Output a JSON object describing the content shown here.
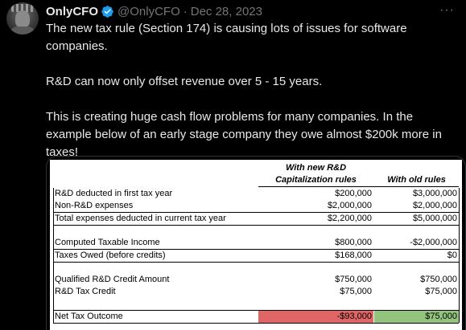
{
  "tweet": {
    "display_name": "OnlyCFO",
    "handle": "@OnlyCFO",
    "separator": "·",
    "date": "Dec 28, 2023",
    "more_label": "···",
    "paragraphs": [
      "The new tax rule (Section 174) is causing lots of issues for software companies.",
      "R&D can now only offset revenue over 5 - 15 years.",
      "This is creating huge cash flow problems for many companies. In the example below of an early stage company they owe almost $200k more in taxes!"
    ]
  },
  "table": {
    "col1_header_line1": "With new R&D",
    "col1_header_line2": "Capitalization rules",
    "col2_header": "With old rules",
    "rows": [
      {
        "label": "R&D deducted in first tax year",
        "new": "$200,000",
        "old": "$3,000,000"
      },
      {
        "label": "Non-R&D expenses",
        "new": "$2,000,000",
        "old": "$2,000,000"
      },
      {
        "label": "Total expenses deducted in current tax year",
        "new": "$2,200,000",
        "old": "$5,000,000"
      },
      {
        "label": "Computed Taxable Income",
        "new": "$800,000",
        "old": "-$2,000,000"
      },
      {
        "label": "Taxes Owed (before credits)",
        "new": "$168,000",
        "old": "$0"
      },
      {
        "label": "Qualified R&D Credit Amount",
        "new": "$750,000",
        "old": "$750,000"
      },
      {
        "label": "R&D Tax Credit",
        "new": "$75,000",
        "old": "$75,000"
      },
      {
        "label": "Net Tax Outcome",
        "new": "-$93,000",
        "old": "$75,000"
      }
    ],
    "colors": {
      "negative_fill": "#e06666",
      "positive_fill": "#93c47d"
    }
  }
}
